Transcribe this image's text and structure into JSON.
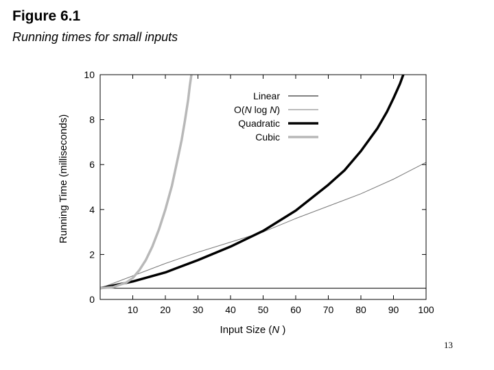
{
  "slide": {
    "title": "Figure 6.1",
    "subtitle": "Running times for small inputs",
    "page_number": "13"
  },
  "chart_data": {
    "type": "line",
    "title": "",
    "xlabel": "Input Size (N)",
    "xlabel_parts": [
      "Input Size (",
      "N",
      " )"
    ],
    "ylabel": "Running Time (milliseconds)",
    "xlim": [
      0,
      100
    ],
    "ylim": [
      0,
      10
    ],
    "xticks": [
      10,
      20,
      30,
      40,
      50,
      60,
      70,
      80,
      90,
      100
    ],
    "yticks": [
      0,
      2,
      4,
      6,
      8,
      10
    ],
    "grid": false,
    "legend_position": "top-right",
    "series": [
      {
        "name": "Linear",
        "legend_parts": [
          {
            "text": "Linear",
            "italic": false
          }
        ],
        "color": "#000000",
        "weight": "thin",
        "x": [
          0,
          100
        ],
        "y": [
          0.5,
          0.5
        ]
      },
      {
        "name": "O(N log N)",
        "legend_parts": [
          {
            "text": "O(",
            "italic": false
          },
          {
            "text": "N",
            "italic": true
          },
          {
            "text": " log ",
            "italic": false
          },
          {
            "text": "N",
            "italic": true
          },
          {
            "text": ")",
            "italic": false
          }
        ],
        "color": "#777777",
        "weight": "thin",
        "x": [
          0,
          10,
          20,
          30,
          40,
          50,
          60,
          70,
          80,
          90,
          100
        ],
        "y": [
          0.5,
          1.05,
          1.6,
          2.1,
          2.55,
          3.0,
          3.6,
          4.15,
          4.7,
          5.35,
          6.1
        ]
      },
      {
        "name": "Quadratic",
        "legend_parts": [
          {
            "text": "Quadratic",
            "italic": false
          }
        ],
        "color": "#000000",
        "weight": "thick",
        "x": [
          0,
          10,
          20,
          30,
          40,
          50,
          60,
          70,
          75,
          80,
          85,
          88,
          90,
          92,
          93
        ],
        "y": [
          0.5,
          0.8,
          1.2,
          1.75,
          2.35,
          3.05,
          3.95,
          5.1,
          5.75,
          6.6,
          7.6,
          8.35,
          8.95,
          9.6,
          10.0
        ]
      },
      {
        "name": "Cubic",
        "legend_parts": [
          {
            "text": "Cubic",
            "italic": false
          }
        ],
        "color": "#b8b8b8",
        "weight": "thick",
        "x": [
          0,
          4,
          8,
          10,
          12,
          14,
          16,
          18,
          20,
          22,
          24,
          25,
          26,
          27,
          27.5,
          28
        ],
        "y": [
          0.5,
          0.55,
          0.75,
          0.95,
          1.3,
          1.75,
          2.35,
          3.1,
          4.0,
          5.05,
          6.4,
          7.1,
          7.95,
          8.9,
          9.5,
          10.0
        ]
      }
    ]
  }
}
